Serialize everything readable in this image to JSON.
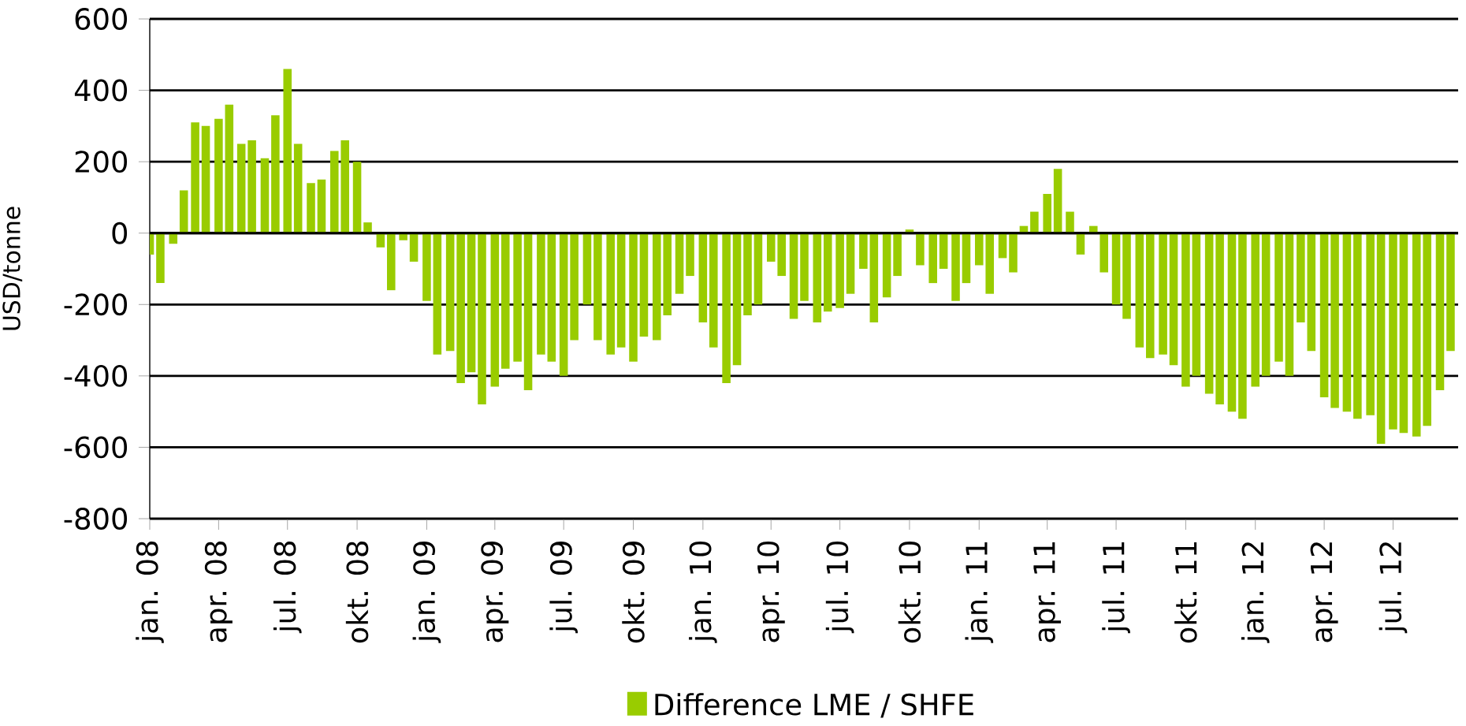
{
  "chart_data": {
    "type": "bar",
    "ylabel": "USD/tonne",
    "grid": "y",
    "legend": "bottom",
    "ylim": [
      -800,
      600
    ],
    "yticks": [
      -800,
      -600,
      -400,
      -200,
      0,
      200,
      400,
      600
    ],
    "xlim": [
      "2008-01-01",
      "2012-09-25"
    ],
    "xticks": [
      {
        "value": "2008-01-01",
        "label": "jan. 08"
      },
      {
        "value": "2008-04-01",
        "label": "apr. 08"
      },
      {
        "value": "2008-07-01",
        "label": "jul. 08"
      },
      {
        "value": "2008-10-01",
        "label": "okt. 08"
      },
      {
        "value": "2009-01-01",
        "label": "jan. 09"
      },
      {
        "value": "2009-04-01",
        "label": "apr. 09"
      },
      {
        "value": "2009-07-01",
        "label": "jul. 09"
      },
      {
        "value": "2009-10-01",
        "label": "okt. 09"
      },
      {
        "value": "2010-01-01",
        "label": "jan. 10"
      },
      {
        "value": "2010-04-01",
        "label": "apr. 10"
      },
      {
        "value": "2010-07-01",
        "label": "jul. 10"
      },
      {
        "value": "2010-10-01",
        "label": "okt. 10"
      },
      {
        "value": "2011-01-01",
        "label": "jan. 11"
      },
      {
        "value": "2011-04-01",
        "label": "apr. 11"
      },
      {
        "value": "2011-07-01",
        "label": "jul. 11"
      },
      {
        "value": "2011-10-01",
        "label": "okt. 11"
      },
      {
        "value": "2012-01-01",
        "label": "jan. 12"
      },
      {
        "value": "2012-04-01",
        "label": "apr. 12"
      },
      {
        "value": "2012-07-01",
        "label": "jul. 12"
      }
    ],
    "x": [
      "2008-01-01",
      "2008-01-15",
      "2008-02-01",
      "2008-02-15",
      "2008-03-01",
      "2008-03-15",
      "2008-04-01",
      "2008-04-15",
      "2008-05-01",
      "2008-05-15",
      "2008-06-01",
      "2008-06-15",
      "2008-07-01",
      "2008-07-15",
      "2008-08-01",
      "2008-08-15",
      "2008-09-01",
      "2008-09-15",
      "2008-10-01",
      "2008-10-15",
      "2008-11-01",
      "2008-11-15",
      "2008-12-01",
      "2008-12-15",
      "2009-01-01",
      "2009-01-15",
      "2009-02-01",
      "2009-02-15",
      "2009-03-01",
      "2009-03-15",
      "2009-04-01",
      "2009-04-15",
      "2009-05-01",
      "2009-05-15",
      "2009-06-01",
      "2009-06-15",
      "2009-07-01",
      "2009-07-15",
      "2009-08-01",
      "2009-08-15",
      "2009-09-01",
      "2009-09-15",
      "2009-10-01",
      "2009-10-15",
      "2009-11-01",
      "2009-11-15",
      "2009-12-01",
      "2009-12-15",
      "2010-01-01",
      "2010-01-15",
      "2010-02-01",
      "2010-02-15",
      "2010-03-01",
      "2010-03-15",
      "2010-04-01",
      "2010-04-15",
      "2010-05-01",
      "2010-05-15",
      "2010-06-01",
      "2010-06-15",
      "2010-07-01",
      "2010-07-15",
      "2010-08-01",
      "2010-08-15",
      "2010-09-01",
      "2010-09-15",
      "2010-10-01",
      "2010-10-15",
      "2010-11-01",
      "2010-11-15",
      "2010-12-01",
      "2010-12-15",
      "2011-01-01",
      "2011-01-15",
      "2011-02-01",
      "2011-02-15",
      "2011-03-01",
      "2011-03-15",
      "2011-04-01",
      "2011-04-15",
      "2011-05-01",
      "2011-05-15",
      "2011-06-01",
      "2011-06-15",
      "2011-07-01",
      "2011-07-15",
      "2011-08-01",
      "2011-08-15",
      "2011-09-01",
      "2011-09-15",
      "2011-10-01",
      "2011-10-15",
      "2011-11-01",
      "2011-11-15",
      "2011-12-01",
      "2011-12-15",
      "2012-01-01",
      "2012-01-15",
      "2012-02-01",
      "2012-02-15",
      "2012-03-01",
      "2012-03-15",
      "2012-04-01",
      "2012-04-15",
      "2012-05-01",
      "2012-05-15",
      "2012-06-01",
      "2012-06-15",
      "2012-07-01",
      "2012-07-15",
      "2012-08-01",
      "2012-08-15",
      "2012-09-01",
      "2012-09-15"
    ],
    "series": [
      {
        "name": "Difference LME / SHFE",
        "color": "#99cc00",
        "values": [
          -60,
          -140,
          -30,
          120,
          310,
          300,
          320,
          360,
          250,
          260,
          210,
          330,
          460,
          250,
          140,
          150,
          230,
          260,
          200,
          30,
          -40,
          -160,
          -20,
          -80,
          -190,
          -340,
          -330,
          -420,
          -390,
          -480,
          -430,
          -380,
          -360,
          -440,
          -340,
          -360,
          -400,
          -300,
          -200,
          -300,
          -340,
          -320,
          -360,
          -290,
          -300,
          -230,
          -170,
          -120,
          -250,
          -320,
          -420,
          -370,
          -230,
          -200,
          -80,
          -120,
          -240,
          -190,
          -250,
          -220,
          -210,
          -170,
          -100,
          -250,
          -180,
          -120,
          10,
          -90,
          -140,
          -100,
          -190,
          -140,
          -90,
          -170,
          -70,
          -110,
          20,
          60,
          110,
          180,
          60,
          -60,
          20,
          -110,
          -200,
          -240,
          -320,
          -350,
          -340,
          -370,
          -430,
          -400,
          -450,
          -480,
          -500,
          -520,
          -430,
          -400,
          -360,
          -400,
          -250,
          -330,
          -460,
          -490,
          -500,
          -520,
          -510,
          -590,
          -550,
          -560,
          -570,
          -540,
          -440,
          -330
        ]
      }
    ]
  }
}
